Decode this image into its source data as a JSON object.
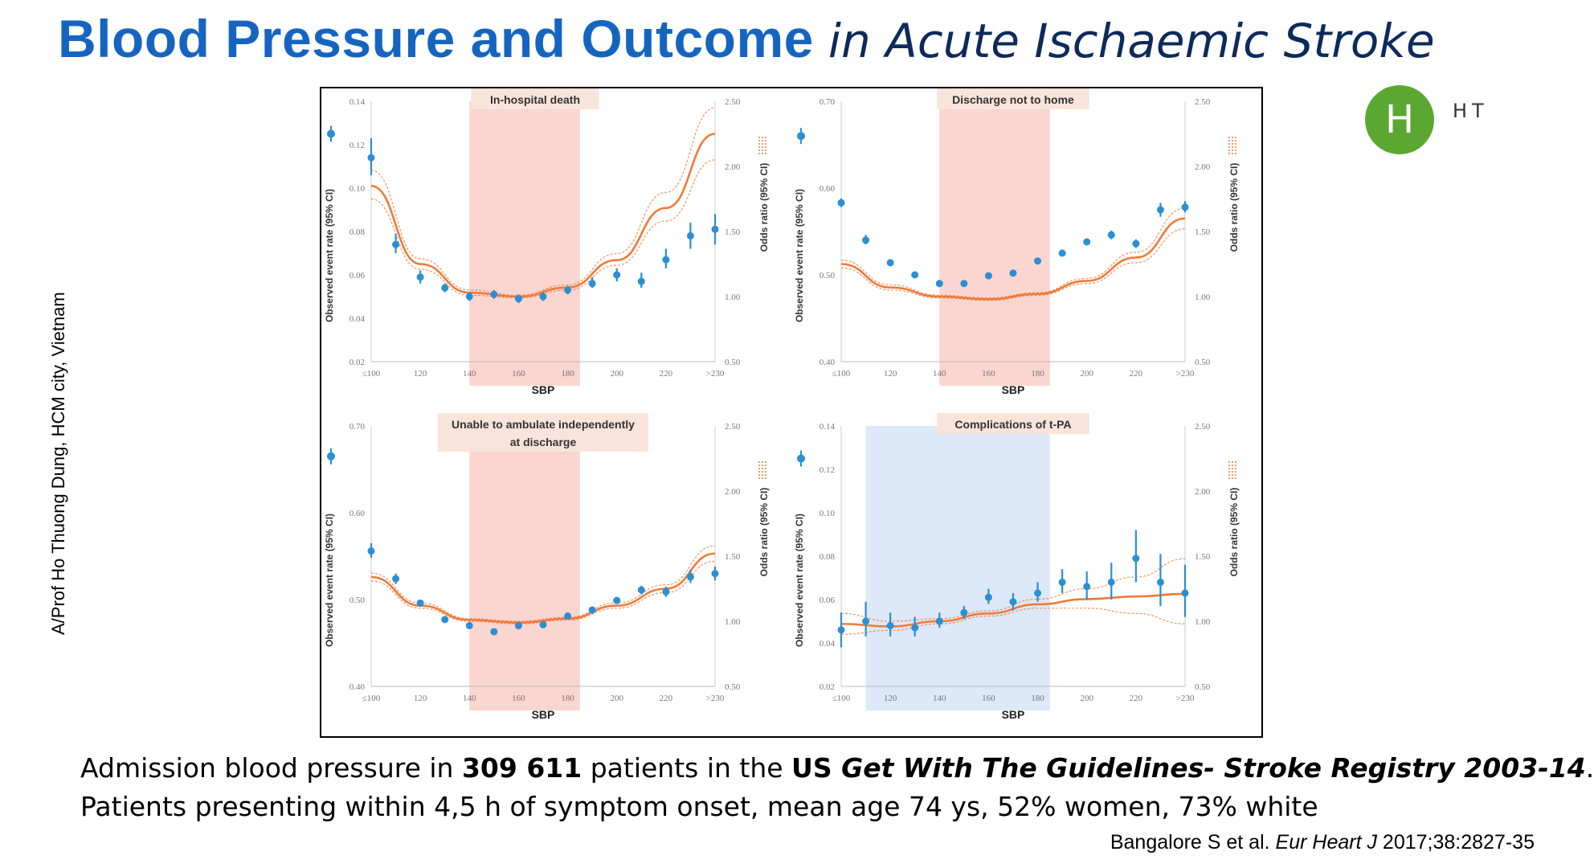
{
  "slide": {
    "title_bold": "Blood Pressure and Outcome",
    "title_italic": "in Acute Ischaemic Stroke",
    "logo_letter": "H",
    "logo_text": "HT",
    "side_text": "A/Prof Ho Thuong Dung, HCM city, Vietnam",
    "caption_line1": [
      {
        "text": "Admission blood pressure in ",
        "style": "normal"
      },
      {
        "text": "309 611",
        "style": "bold"
      },
      {
        "text": " patients in the ",
        "style": "normal"
      },
      {
        "text": "US ",
        "style": "bold"
      },
      {
        "text": "Get With The Guidelines- Stroke Registry 2003-14",
        "style": "bolditalic"
      },
      {
        "text": ".",
        "style": "normal"
      }
    ],
    "caption_line2": "Patients presenting within 4,5 h of symptom onset, mean age 74 ys, 52% women, 73% white",
    "citation_pre": "Bangalore S et al. ",
    "citation_journal": "Eur Heart J",
    "citation_post": " 2017;38:2827-35"
  },
  "colors": {
    "title": "#1565c0",
    "points": "#2a8fd4",
    "curve": "#f07a3a",
    "band_red": "#fbd5d0",
    "band_blue": "#dde8f8",
    "title_box": "#f9e4dc",
    "logo": "#5aa832"
  },
  "chart_data": [
    {
      "type": "scatter",
      "title": "In-hospital death",
      "xlabel": "SBP",
      "ylabel_left": "Observed event rate (95% CI)",
      "ylabel_right": "Odds ratio (95% CI)",
      "x_ticks": [
        "≤100",
        "120",
        "140",
        "160",
        "180",
        "200",
        "220",
        ">230"
      ],
      "y_left_ticks": [
        "0.02",
        "0.04",
        "0.06",
        "0.08",
        "0.10",
        "0.12",
        "0.14"
      ],
      "y_left_lim": [
        0.02,
        0.14
      ],
      "y_right_ticks": [
        "0.50",
        "1.00",
        "1.50",
        "2.00",
        "2.50"
      ],
      "y_right_lim": [
        0.5,
        2.5
      ],
      "band": {
        "from": 140,
        "to": 185,
        "color": "red"
      },
      "legend_point_rate": 0.125,
      "points": [
        {
          "x": 100,
          "y": 0.114,
          "lo": 0.106,
          "hi": 0.123
        },
        {
          "x": 110,
          "y": 0.074,
          "lo": 0.07,
          "hi": 0.079
        },
        {
          "x": 120,
          "y": 0.059,
          "lo": 0.056,
          "hi": 0.062
        },
        {
          "x": 130,
          "y": 0.054,
          "lo": 0.052,
          "hi": 0.056
        },
        {
          "x": 140,
          "y": 0.05,
          "lo": 0.048,
          "hi": 0.052
        },
        {
          "x": 150,
          "y": 0.051,
          "lo": 0.049,
          "hi": 0.053
        },
        {
          "x": 160,
          "y": 0.049,
          "lo": 0.047,
          "hi": 0.051
        },
        {
          "x": 170,
          "y": 0.05,
          "lo": 0.048,
          "hi": 0.052
        },
        {
          "x": 180,
          "y": 0.053,
          "lo": 0.051,
          "hi": 0.055
        },
        {
          "x": 190,
          "y": 0.056,
          "lo": 0.054,
          "hi": 0.059
        },
        {
          "x": 200,
          "y": 0.06,
          "lo": 0.057,
          "hi": 0.063
        },
        {
          "x": 210,
          "y": 0.057,
          "lo": 0.054,
          "hi": 0.061
        },
        {
          "x": 220,
          "y": 0.067,
          "lo": 0.063,
          "hi": 0.072
        },
        {
          "x": 230,
          "y": 0.078,
          "lo": 0.072,
          "hi": 0.084
        },
        {
          "x": 240,
          "y": 0.081,
          "lo": 0.074,
          "hi": 0.088
        }
      ],
      "curve": [
        {
          "x": 100,
          "or": 1.85,
          "lo": 1.75,
          "hi": 1.97
        },
        {
          "x": 120,
          "or": 1.25,
          "lo": 1.21,
          "hi": 1.29
        },
        {
          "x": 140,
          "or": 1.03,
          "lo": 1.01,
          "hi": 1.05
        },
        {
          "x": 160,
          "or": 1.0,
          "lo": 0.99,
          "hi": 1.01
        },
        {
          "x": 180,
          "or": 1.07,
          "lo": 1.05,
          "hi": 1.09
        },
        {
          "x": 200,
          "or": 1.28,
          "lo": 1.24,
          "hi": 1.33
        },
        {
          "x": 220,
          "or": 1.68,
          "lo": 1.58,
          "hi": 1.8
        },
        {
          "x": 240,
          "or": 2.25,
          "lo": 2.05,
          "hi": 2.45
        }
      ]
    },
    {
      "type": "scatter",
      "title": "Discharge not to home",
      "xlabel": "SBP",
      "ylabel_left": "Observed event rate (95% CI)",
      "ylabel_right": "Odds ratio (95% CI)",
      "x_ticks": [
        "≤100",
        "120",
        "140",
        "160",
        "180",
        "200",
        "220",
        ">230"
      ],
      "y_left_ticks": [
        "0.40",
        "0.50",
        "0.60",
        "0.70"
      ],
      "y_left_lim": [
        0.4,
        0.7
      ],
      "y_right_ticks": [
        "0.50",
        "1.00",
        "1.50",
        "2.00",
        "2.50"
      ],
      "y_right_lim": [
        0.5,
        2.5
      ],
      "band": {
        "from": 140,
        "to": 185,
        "color": "red"
      },
      "legend_point_rate": 0.66,
      "points": [
        {
          "x": 100,
          "y": 0.583,
          "lo": 0.578,
          "hi": 0.588
        },
        {
          "x": 110,
          "y": 0.54,
          "lo": 0.535,
          "hi": 0.546
        },
        {
          "x": 120,
          "y": 0.514,
          "lo": 0.51,
          "hi": 0.518
        },
        {
          "x": 130,
          "y": 0.5,
          "lo": 0.497,
          "hi": 0.503
        },
        {
          "x": 140,
          "y": 0.49,
          "lo": 0.487,
          "hi": 0.493
        },
        {
          "x": 150,
          "y": 0.49,
          "lo": 0.487,
          "hi": 0.493
        },
        {
          "x": 160,
          "y": 0.499,
          "lo": 0.496,
          "hi": 0.502
        },
        {
          "x": 170,
          "y": 0.502,
          "lo": 0.499,
          "hi": 0.505
        },
        {
          "x": 180,
          "y": 0.516,
          "lo": 0.513,
          "hi": 0.519
        },
        {
          "x": 190,
          "y": 0.525,
          "lo": 0.522,
          "hi": 0.528
        },
        {
          "x": 200,
          "y": 0.538,
          "lo": 0.535,
          "hi": 0.542
        },
        {
          "x": 210,
          "y": 0.546,
          "lo": 0.541,
          "hi": 0.551
        },
        {
          "x": 220,
          "y": 0.536,
          "lo": 0.531,
          "hi": 0.541
        },
        {
          "x": 230,
          "y": 0.575,
          "lo": 0.567,
          "hi": 0.583
        },
        {
          "x": 240,
          "y": 0.578,
          "lo": 0.572,
          "hi": 0.585
        }
      ],
      "curve": [
        {
          "x": 100,
          "or": 1.25,
          "lo": 1.22,
          "hi": 1.28
        },
        {
          "x": 120,
          "or": 1.07,
          "lo": 1.05,
          "hi": 1.09
        },
        {
          "x": 140,
          "or": 1.0,
          "lo": 0.99,
          "hi": 1.01
        },
        {
          "x": 160,
          "or": 0.98,
          "lo": 0.97,
          "hi": 0.99
        },
        {
          "x": 180,
          "or": 1.02,
          "lo": 1.01,
          "hi": 1.03
        },
        {
          "x": 200,
          "or": 1.12,
          "lo": 1.1,
          "hi": 1.14
        },
        {
          "x": 220,
          "or": 1.3,
          "lo": 1.26,
          "hi": 1.34
        },
        {
          "x": 240,
          "or": 1.6,
          "lo": 1.52,
          "hi": 1.68
        }
      ]
    },
    {
      "type": "scatter",
      "title": "Unable to ambulate independently at discharge",
      "title_lines": [
        "Unable to ambulate independently",
        "at discharge"
      ],
      "xlabel": "SBP",
      "ylabel_left": "Observed event rate (95% CI)",
      "ylabel_right": "Odds ratio (95% CI)",
      "x_ticks": [
        "≤100",
        "120",
        "140",
        "160",
        "180",
        "200",
        "220",
        ">230"
      ],
      "y_left_ticks": [
        "0.40",
        "0.50",
        "0.60",
        "0.70"
      ],
      "y_left_lim": [
        0.4,
        0.7
      ],
      "y_right_ticks": [
        "0.50",
        "1.00",
        "1.50",
        "2.00",
        "2.50"
      ],
      "y_right_lim": [
        0.5,
        2.5
      ],
      "band": {
        "from": 140,
        "to": 185,
        "color": "red"
      },
      "legend_point_rate": 0.665,
      "points": [
        {
          "x": 100,
          "y": 0.556,
          "lo": 0.548,
          "hi": 0.565
        },
        {
          "x": 110,
          "y": 0.524,
          "lo": 0.518,
          "hi": 0.53
        },
        {
          "x": 120,
          "y": 0.496,
          "lo": 0.492,
          "hi": 0.5
        },
        {
          "x": 130,
          "y": 0.477,
          "lo": 0.474,
          "hi": 0.48
        },
        {
          "x": 140,
          "y": 0.47,
          "lo": 0.467,
          "hi": 0.473
        },
        {
          "x": 150,
          "y": 0.463,
          "lo": 0.46,
          "hi": 0.466
        },
        {
          "x": 160,
          "y": 0.47,
          "lo": 0.467,
          "hi": 0.473
        },
        {
          "x": 170,
          "y": 0.471,
          "lo": 0.468,
          "hi": 0.474
        },
        {
          "x": 180,
          "y": 0.481,
          "lo": 0.478,
          "hi": 0.484
        },
        {
          "x": 190,
          "y": 0.488,
          "lo": 0.485,
          "hi": 0.491
        },
        {
          "x": 200,
          "y": 0.499,
          "lo": 0.495,
          "hi": 0.503
        },
        {
          "x": 210,
          "y": 0.511,
          "lo": 0.506,
          "hi": 0.516
        },
        {
          "x": 220,
          "y": 0.509,
          "lo": 0.503,
          "hi": 0.515
        },
        {
          "x": 230,
          "y": 0.526,
          "lo": 0.519,
          "hi": 0.534
        },
        {
          "x": 240,
          "y": 0.53,
          "lo": 0.522,
          "hi": 0.538
        }
      ],
      "curve": [
        {
          "x": 100,
          "or": 1.34,
          "lo": 1.31,
          "hi": 1.37
        },
        {
          "x": 120,
          "or": 1.12,
          "lo": 1.1,
          "hi": 1.14
        },
        {
          "x": 140,
          "or": 1.01,
          "lo": 1.0,
          "hi": 1.02
        },
        {
          "x": 160,
          "or": 0.99,
          "lo": 0.98,
          "hi": 1.0
        },
        {
          "x": 180,
          "or": 1.02,
          "lo": 1.01,
          "hi": 1.03
        },
        {
          "x": 200,
          "or": 1.12,
          "lo": 1.1,
          "hi": 1.14
        },
        {
          "x": 220,
          "or": 1.25,
          "lo": 1.22,
          "hi": 1.28
        },
        {
          "x": 240,
          "or": 1.52,
          "lo": 1.46,
          "hi": 1.58
        }
      ]
    },
    {
      "type": "scatter",
      "title": "Complications of t-PA",
      "xlabel": "SBP",
      "ylabel_left": "Observed event rate (95% CI)",
      "ylabel_right": "Odds ratio (95% CI)",
      "x_ticks": [
        "≤100",
        "120",
        "140",
        "160",
        "180",
        "200",
        "220",
        ">230"
      ],
      "y_left_ticks": [
        "0.02",
        "0.04",
        "0.06",
        "0.08",
        "0.10",
        "0.12",
        "0.14"
      ],
      "y_left_lim": [
        0.02,
        0.14
      ],
      "y_right_ticks": [
        "0.50",
        "1.00",
        "1.50",
        "2.00",
        "2.50"
      ],
      "y_right_lim": [
        0.5,
        2.5
      ],
      "band": {
        "from": 110,
        "to": 185,
        "color": "blue"
      },
      "legend_point_rate": 0.125,
      "points": [
        {
          "x": 100,
          "y": 0.046,
          "lo": 0.038,
          "hi": 0.054
        },
        {
          "x": 110,
          "y": 0.05,
          "lo": 0.043,
          "hi": 0.059
        },
        {
          "x": 120,
          "y": 0.048,
          "lo": 0.043,
          "hi": 0.054
        },
        {
          "x": 130,
          "y": 0.047,
          "lo": 0.043,
          "hi": 0.052
        },
        {
          "x": 140,
          "y": 0.05,
          "lo": 0.047,
          "hi": 0.054
        },
        {
          "x": 150,
          "y": 0.054,
          "lo": 0.051,
          "hi": 0.057
        },
        {
          "x": 160,
          "y": 0.061,
          "lo": 0.058,
          "hi": 0.065
        },
        {
          "x": 170,
          "y": 0.059,
          "lo": 0.055,
          "hi": 0.063
        },
        {
          "x": 180,
          "y": 0.063,
          "lo": 0.059,
          "hi": 0.068
        },
        {
          "x": 190,
          "y": 0.068,
          "lo": 0.063,
          "hi": 0.074
        },
        {
          "x": 200,
          "y": 0.066,
          "lo": 0.06,
          "hi": 0.073
        },
        {
          "x": 210,
          "y": 0.068,
          "lo": 0.06,
          "hi": 0.077
        },
        {
          "x": 220,
          "y": 0.079,
          "lo": 0.068,
          "hi": 0.092
        },
        {
          "x": 230,
          "y": 0.068,
          "lo": 0.057,
          "hi": 0.081
        },
        {
          "x": 240,
          "y": 0.063,
          "lo": 0.052,
          "hi": 0.076
        }
      ],
      "curve": [
        {
          "x": 100,
          "or": 0.98,
          "lo": 0.9,
          "hi": 1.06
        },
        {
          "x": 120,
          "or": 0.96,
          "lo": 0.93,
          "hi": 1.0
        },
        {
          "x": 140,
          "or": 1.0,
          "lo": 0.98,
          "hi": 1.02
        },
        {
          "x": 160,
          "or": 1.06,
          "lo": 1.04,
          "hi": 1.08
        },
        {
          "x": 180,
          "or": 1.13,
          "lo": 1.1,
          "hi": 1.17
        },
        {
          "x": 200,
          "or": 1.17,
          "lo": 1.1,
          "hi": 1.25
        },
        {
          "x": 220,
          "or": 1.19,
          "lo": 1.06,
          "hi": 1.34
        },
        {
          "x": 240,
          "or": 1.21,
          "lo": 0.98,
          "hi": 1.48
        }
      ]
    }
  ]
}
